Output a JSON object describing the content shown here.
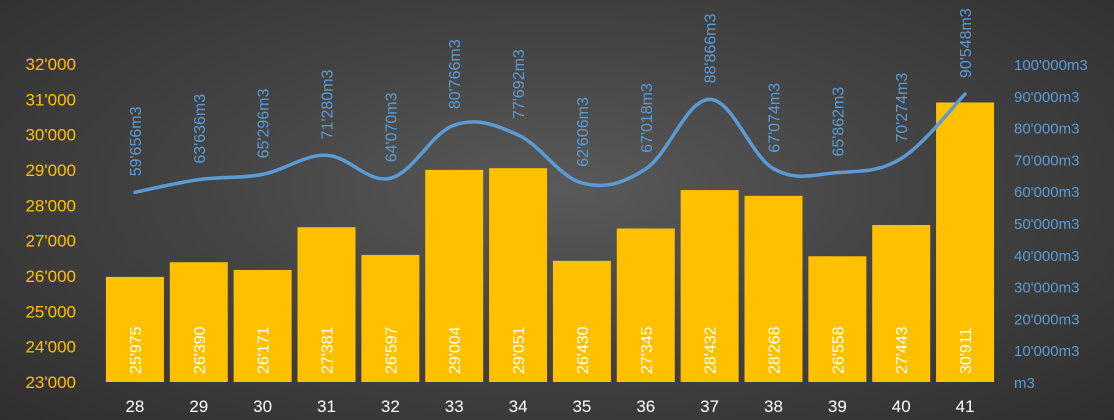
{
  "chart_data": {
    "type": "bar",
    "title": "",
    "xlabel": "",
    "ylabel": "",
    "categories": [
      "28",
      "29",
      "30",
      "31",
      "32",
      "33",
      "34",
      "35",
      "36",
      "37",
      "38",
      "39",
      "40",
      "41"
    ],
    "series": [
      {
        "values": [
          25975,
          26390,
          26171,
          27381,
          26597,
          29004,
          29051,
          26430,
          27345,
          28432,
          28268,
          26558,
          27443,
          30911
        ],
        "labels": [
          "25'975",
          "26'390",
          "26'171",
          "27'381",
          "26'597",
          "29'004",
          "29'051",
          "26'430",
          "27'345",
          "28'432",
          "28'268",
          "26'558",
          "27'443",
          "30'911"
        ],
        "axis": "left",
        "color": "#FFC000"
      },
      {
        "type": "line",
        "values": [
          59656,
          63636,
          65296,
          71280,
          64070,
          80766,
          77692,
          62606,
          67018,
          88866,
          67074,
          65862,
          70274,
          90548
        ],
        "labels": [
          "59'656m3",
          "63'636m3",
          "65'296m3",
          "71'280m3",
          "64'070m3",
          "80'766m3",
          "77'692m3",
          "62'606m3",
          "67'018m3",
          "88'866m3",
          "67'074m3",
          "65'862m3",
          "70'274m3",
          "90'548m3"
        ],
        "axis": "right",
        "color": "#5B9BD5"
      }
    ],
    "left_axis": {
      "ylim": [
        23000,
        32000
      ],
      "ticks": [
        "23'000",
        "24'000",
        "25'000",
        "26'000",
        "27'000",
        "28'000",
        "29'000",
        "30'000",
        "31'000",
        "32'000"
      ],
      "color": "#FFC000"
    },
    "right_axis": {
      "ylim": [
        0,
        100000
      ],
      "ticks": [
        "m3",
        "10'000m3",
        "20'000m3",
        "30'000m3",
        "40'000m3",
        "50'000m3",
        "60'000m3",
        "70'000m3",
        "80'000m3",
        "90'000m3",
        "100'000m3"
      ],
      "color": "#5B9BD5"
    },
    "x_tick_color": "#FFFFFF",
    "grid": false,
    "legend": "none"
  }
}
